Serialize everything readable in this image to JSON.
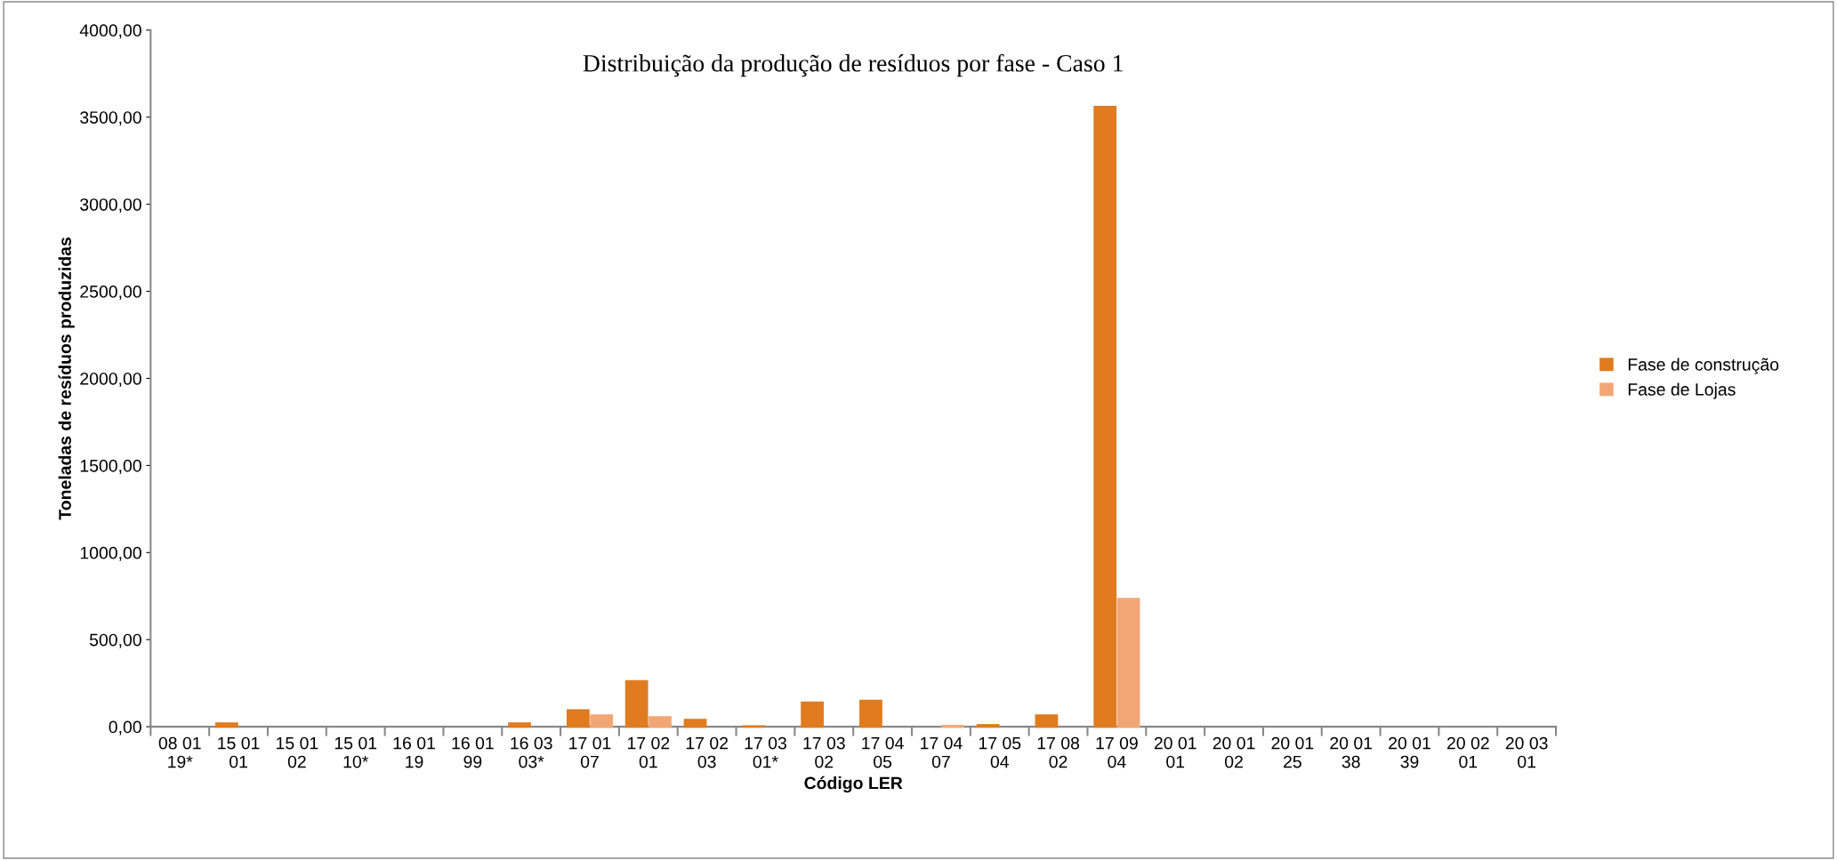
{
  "chart_data": {
    "type": "bar",
    "title": "Distribuição da produção de resíduos por fase - Caso 1",
    "xlabel": "Código LER",
    "ylabel": "Toneladas de resíduos produzidas",
    "categories": [
      "08 01\n19*",
      "15 01\n01",
      "15 01\n02",
      "15 01\n10*",
      "16 01\n19",
      "16 01\n99",
      "16 03\n03*",
      "17 01\n07",
      "17 02\n01",
      "17 02\n03",
      "17 03\n01*",
      "17 03\n02",
      "17 04\n05",
      "17 04\n07",
      "17 05\n04",
      "17 08\n02",
      "17 09\n04",
      "20 01\n01",
      "20 01\n02",
      "20 01\n25",
      "20 01\n38",
      "20 01\n39",
      "20 02\n01",
      "20 03\n01"
    ],
    "series": [
      {
        "name": "Fase de construção",
        "color": "#e07b20",
        "values": [
          0,
          20,
          0,
          0,
          0,
          0,
          20,
          95,
          262,
          40,
          3,
          140,
          150,
          0,
          10,
          65,
          3560,
          0,
          0,
          0,
          0,
          0,
          0,
          0
        ]
      },
      {
        "name": "Fase de Lojas",
        "color": "#f2a676",
        "values": [
          0,
          0,
          0,
          0,
          0,
          0,
          0,
          65,
          55,
          0,
          0,
          0,
          0,
          5,
          0,
          0,
          735,
          0,
          0,
          0,
          0,
          0,
          0,
          0
        ]
      }
    ],
    "ylim": [
      0,
      4000
    ],
    "yticks": [
      {
        "value": 0,
        "label": "0,00"
      },
      {
        "value": 500,
        "label": "500,00"
      },
      {
        "value": 1000,
        "label": "1000,00"
      },
      {
        "value": 1500,
        "label": "1500,00"
      },
      {
        "value": 2000,
        "label": "2000,00"
      },
      {
        "value": 2500,
        "label": "2500,00"
      },
      {
        "value": 3000,
        "label": "3000,00"
      },
      {
        "value": 3500,
        "label": "3500,00"
      },
      {
        "value": 4000,
        "label": "4000,00"
      }
    ],
    "grid": false,
    "legend": "right"
  }
}
